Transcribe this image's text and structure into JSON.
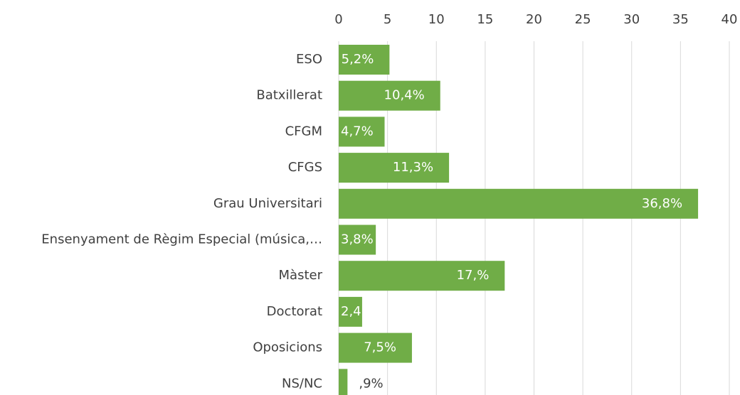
{
  "chart_data": {
    "type": "barh",
    "categories": [
      "ESO",
      "Batxillerat",
      "CFGM",
      "CFGS",
      "Grau Universitari",
      "Ensenyament de Règim Especial (música,…",
      "Màster",
      "Doctorat",
      "Oposicions",
      "NS/NC"
    ],
    "values": [
      5.2,
      10.4,
      4.7,
      11.3,
      36.8,
      3.8,
      17.0,
      2.4,
      7.5,
      0.9
    ],
    "value_labels": [
      "5,2%",
      "10,4%",
      "4,7%",
      "11,3%",
      "36,8%",
      "3,8%",
      "17,%",
      "2,4",
      "7,5%",
      ",9%"
    ],
    "color": "#70ad47",
    "xlim": [
      0,
      40
    ],
    "xticks": [
      0,
      5,
      10,
      15,
      20,
      25,
      30,
      35,
      40
    ],
    "grid": true
  }
}
